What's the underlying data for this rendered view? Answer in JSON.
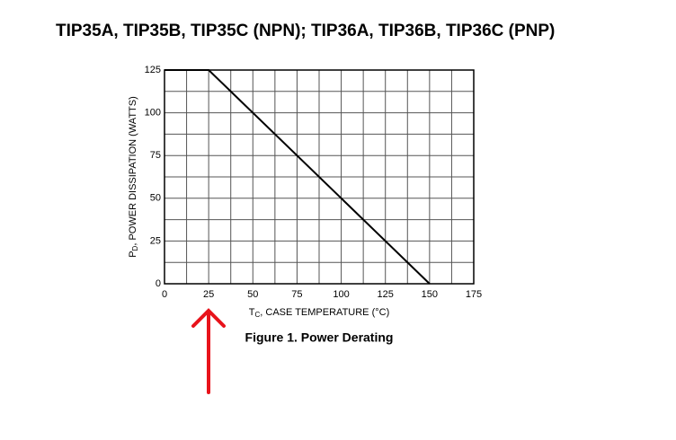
{
  "chart_data": {
    "type": "line",
    "title": "TIP35A, TIP35B, TIP35C (NPN); TIP36A, TIP36B, TIP36C (PNP)",
    "x_label": {
      "main": "T",
      "sub": "C",
      "rest": ", CASE TEMPERATURE (°C)"
    },
    "y_label": {
      "main": "P",
      "sub": "D",
      "rest": ", POWER DISSIPATION (WATTS)"
    },
    "caption": "Figure 1. Power Derating",
    "x": [
      0,
      25,
      150
    ],
    "series": [
      {
        "name": "Power Dissipation",
        "color": "#000000",
        "values": [
          125,
          125,
          0
        ]
      }
    ],
    "xlim": [
      0,
      175
    ],
    "xticks": [
      0,
      25,
      50,
      75,
      100,
      125,
      150,
      175
    ],
    "ylim": [
      0,
      125
    ],
    "yticks": [
      0,
      25,
      50,
      75,
      100,
      125
    ],
    "grid": true
  }
}
